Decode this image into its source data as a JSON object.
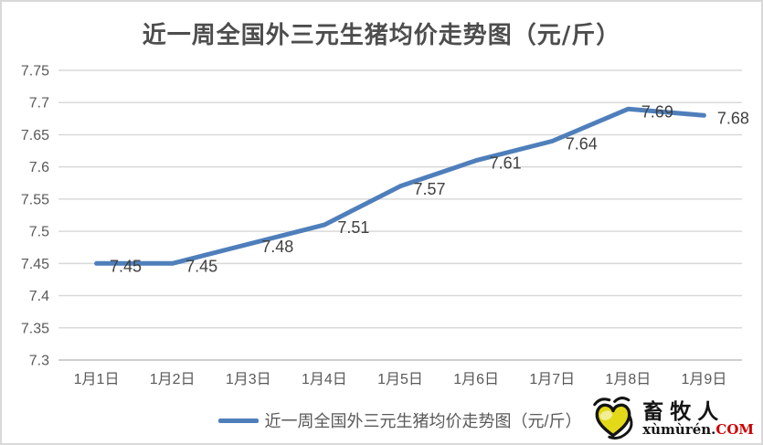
{
  "title": "近一周全国外三元生猪均价走势图（元/斤）",
  "chart_data": {
    "type": "line",
    "title": "近一周全国外三元生猪均价走势图（元/斤）",
    "categories": [
      "1月1日",
      "1月2日",
      "1月3日",
      "1月4日",
      "1月5日",
      "1月6日",
      "1月7日",
      "1月8日",
      "1月9日"
    ],
    "series": [
      {
        "name": "近一周全国外三元生猪均价走势图（元/斤）",
        "values": [
          7.45,
          7.45,
          7.48,
          7.51,
          7.57,
          7.61,
          7.64,
          7.69,
          7.68
        ]
      }
    ],
    "data_labels": [
      "7.45",
      "7.45",
      "7.48",
      "7.51",
      "7.57",
      "7.61",
      "7.64",
      "7.69",
      "7.68"
    ],
    "xlabel": "",
    "ylabel": "",
    "ylim": [
      7.3,
      7.75
    ],
    "yticks": [
      7.75,
      7.7,
      7.65,
      7.6,
      7.55,
      7.5,
      7.45,
      7.4,
      7.35,
      7.3
    ],
    "ytick_labels": [
      "7.75",
      "7.7",
      "7.65",
      "7.6",
      "7.55",
      "7.5",
      "7.45",
      "7.4",
      "7.35",
      "7.3"
    ],
    "grid": true,
    "legend_position": "bottom"
  },
  "legend": {
    "items": [
      {
        "label": "近一周全国外三元生猪均价走势图（元/斤）",
        "color": "#4e7fbb"
      }
    ]
  },
  "logo": {
    "name": "畜牧人",
    "url_black": "xùmùrén.",
    "url_red": "COM",
    "heart_icon": "heart-smiley-icon"
  },
  "colors": {
    "line": "#4e7fbb",
    "grid": "#d9d9d9",
    "axis": "#bfbfbf",
    "title_text": "#4d4d4d",
    "tick_text": "#595959",
    "label_text": "#404040",
    "border": "#d9d9d9",
    "logo_red": "#cc0000",
    "logo_yellow": "#e3d918"
  }
}
